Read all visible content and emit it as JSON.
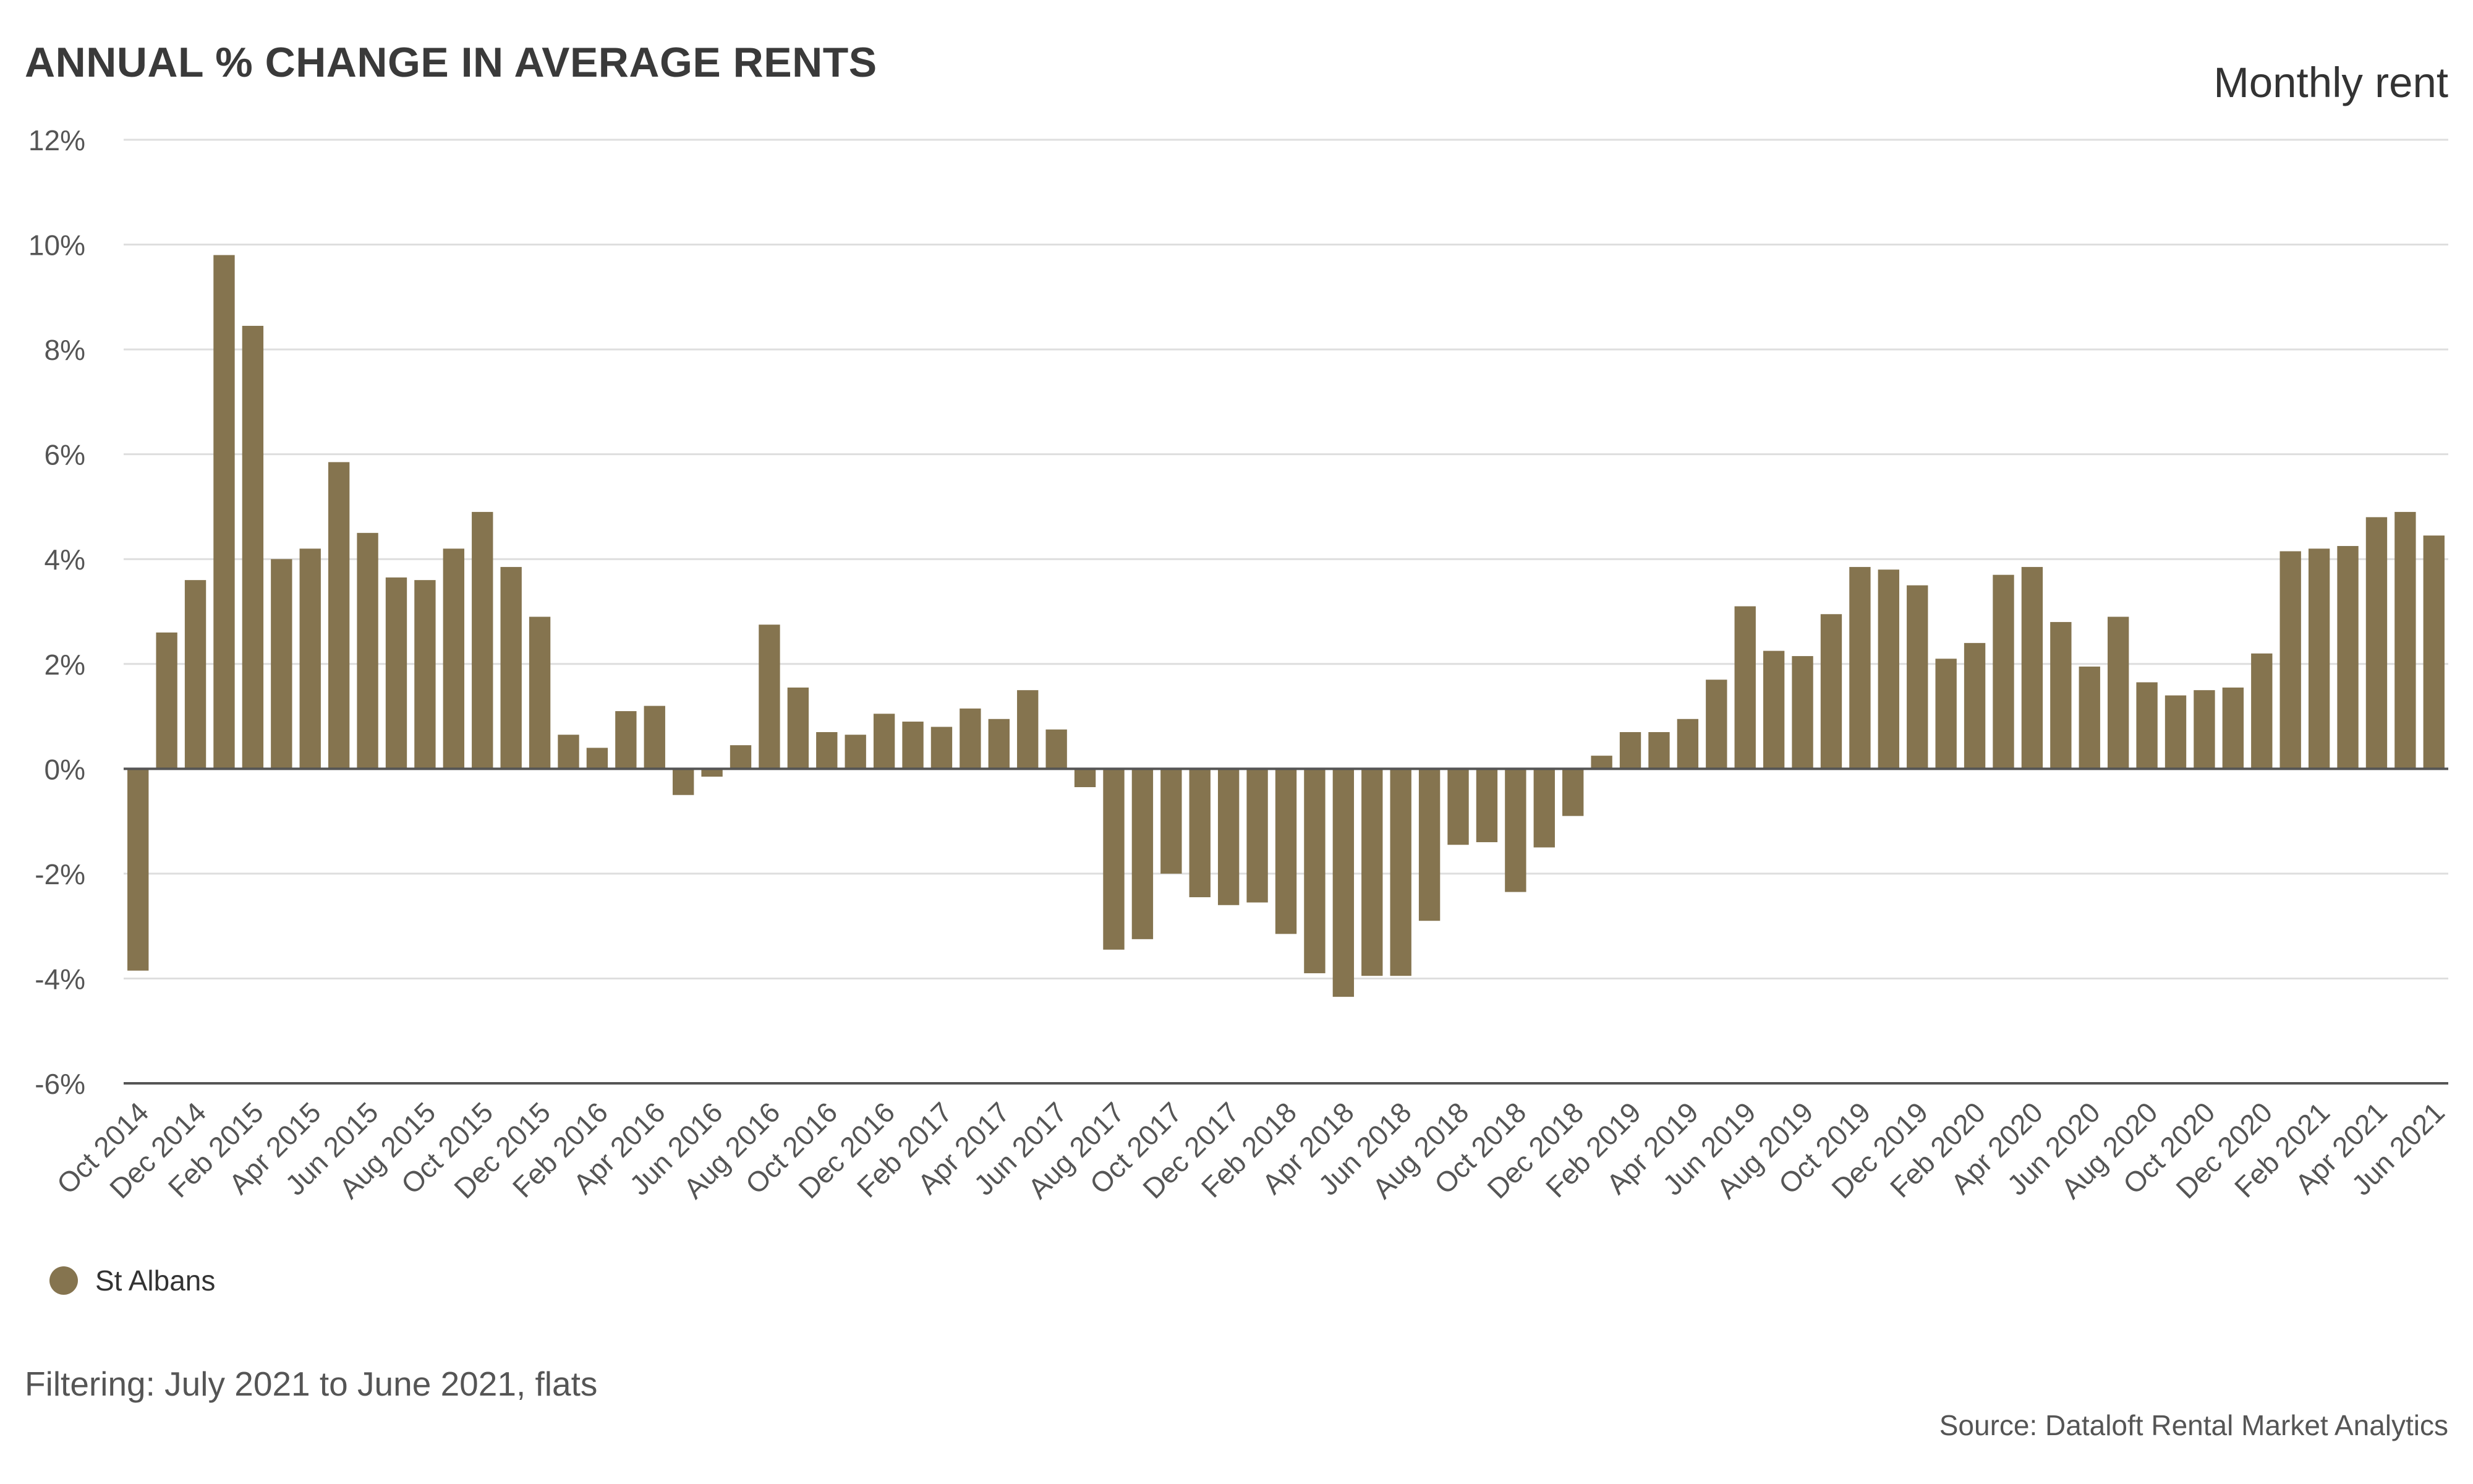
{
  "chart_data": {
    "type": "bar",
    "title": "ANNUAL % CHANGE IN AVERAGE RENTS",
    "subtitle": "Monthly rent",
    "xlabel": "",
    "ylabel": "",
    "ylim": [
      -6,
      12
    ],
    "yticks": [
      -6,
      -4,
      -2,
      0,
      2,
      4,
      6,
      8,
      10,
      12
    ],
    "ytick_labels": [
      "-6%",
      "-4%",
      "-2%",
      "0%",
      "2%",
      "4%",
      "6%",
      "8%",
      "10%",
      "12%"
    ],
    "grid": true,
    "legend_position": "bottom-left",
    "categories": [
      "Oct 2014",
      "Nov 2014",
      "Dec 2014",
      "Jan 2015",
      "Feb 2015",
      "Mar 2015",
      "Apr 2015",
      "May 2015",
      "Jun 2015",
      "Jul 2015",
      "Aug 2015",
      "Sep 2015",
      "Oct 2015",
      "Nov 2015",
      "Dec 2015",
      "Jan 2016",
      "Feb 2016",
      "Mar 2016",
      "Apr 2016",
      "May 2016",
      "Jun 2016",
      "Jul 2016",
      "Aug 2016",
      "Sep 2016",
      "Oct 2016",
      "Nov 2016",
      "Dec 2016",
      "Jan 2017",
      "Feb 2017",
      "Mar 2017",
      "Apr 2017",
      "May 2017",
      "Jun 2017",
      "Jul 2017",
      "Aug 2017",
      "Sep 2017",
      "Oct 2017",
      "Nov 2017",
      "Dec 2017",
      "Jan 2018",
      "Feb 2018",
      "Mar 2018",
      "Apr 2018",
      "May 2018",
      "Jun 2018",
      "Jul 2018",
      "Aug 2018",
      "Sep 2018",
      "Oct 2018",
      "Nov 2018",
      "Dec 2018",
      "Jan 2019",
      "Feb 2019",
      "Mar 2019",
      "Apr 2019",
      "May 2019",
      "Jun 2019",
      "Jul 2019",
      "Aug 2019",
      "Sep 2019",
      "Oct 2019",
      "Nov 2019",
      "Dec 2019",
      "Jan 2020",
      "Feb 2020",
      "Mar 2020",
      "Apr 2020",
      "May 2020",
      "Jun 2020",
      "Jul 2020",
      "Aug 2020",
      "Sep 2020",
      "Oct 2020",
      "Nov 2020",
      "Dec 2020",
      "Jan 2021",
      "Feb 2021",
      "Mar 2021",
      "Apr 2021",
      "May 2021",
      "Jun 2021"
    ],
    "tick_labels": [
      "Oct 2014",
      "Dec 2014",
      "Feb 2015",
      "Apr 2015",
      "Jun 2015",
      "Aug 2015",
      "Oct 2015",
      "Dec 2015",
      "Feb 2016",
      "Apr 2016",
      "Jun 2016",
      "Aug 2016",
      "Oct 2016",
      "Dec 2016",
      "Feb 2017",
      "Apr 2017",
      "Jun 2017",
      "Aug 2017",
      "Oct 2017",
      "Dec 2017",
      "Feb 2018",
      "Apr 2018",
      "Jun 2018",
      "Aug 2018",
      "Oct 2018",
      "Dec 2018",
      "Feb 2019",
      "Apr 2019",
      "Jun 2019",
      "Aug 2019",
      "Oct 2019",
      "Dec 2019",
      "Feb 2020",
      "Apr 2020",
      "Jun 2020",
      "Aug 2020",
      "Oct 2020",
      "Dec 2020",
      "Feb 2021",
      "Apr 2021",
      "Jun 2021"
    ],
    "series": [
      {
        "name": "St Albans",
        "color": "#85744f",
        "values": [
          -3.85,
          2.6,
          3.6,
          9.8,
          8.45,
          4.0,
          4.2,
          5.85,
          4.5,
          3.65,
          3.6,
          4.2,
          4.9,
          3.85,
          2.9,
          0.65,
          0.4,
          1.1,
          1.2,
          -0.5,
          -0.15,
          0.45,
          2.75,
          1.55,
          0.7,
          0.65,
          1.05,
          0.9,
          0.8,
          1.15,
          0.95,
          1.5,
          0.75,
          -0.35,
          -3.45,
          -3.25,
          -2.0,
          -2.45,
          -2.6,
          -2.55,
          -3.15,
          -3.9,
          -4.35,
          -3.95,
          -3.95,
          -2.9,
          -1.45,
          -1.4,
          -2.35,
          -1.5,
          -0.9,
          0.25,
          0.7,
          0.7,
          0.95,
          1.7,
          3.1,
          2.25,
          2.15,
          2.95,
          3.85,
          3.8,
          3.5,
          2.1,
          2.4,
          3.7,
          3.85,
          2.8,
          1.95,
          2.9,
          1.65,
          1.4,
          1.5,
          1.55,
          2.2,
          4.15,
          4.2,
          4.25,
          4.8,
          4.9,
          4.45
        ]
      }
    ]
  },
  "footer": {
    "filter_text": "Filtering: July 2021 to June 2021, flats",
    "source_text": "Source: Dataloft Rental Market Analytics"
  }
}
